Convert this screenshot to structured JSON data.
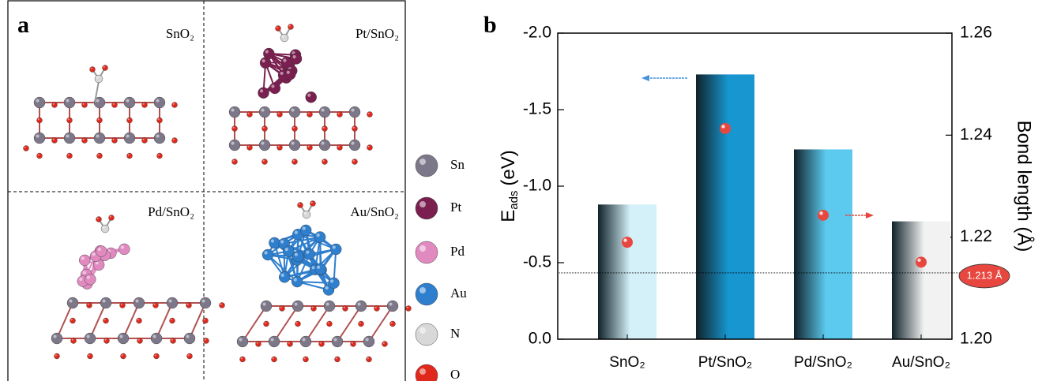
{
  "panel_a": {
    "letter": "a",
    "structures": [
      "SnO₂",
      "Pt/SnO₂",
      "Pd/SnO₂",
      "Au/SnO₂"
    ],
    "legend": [
      "Sn",
      "Pt",
      "Pd",
      "Au",
      "N",
      "O"
    ]
  },
  "chart_data": {
    "type": "bar",
    "letter": "b",
    "categories": [
      "SnO₂",
      "Pt/SnO₂",
      "Pd/SnO₂",
      "Au/SnO₂"
    ],
    "y_label": "E",
    "y_label_sub": "ads",
    "y_label_unit": "(eV)",
    "y2_label": "Bond length (Å)",
    "ylim": [
      0,
      -2.0
    ],
    "yticks": [
      {
        "value": 0,
        "label": "0.0"
      },
      -0.5,
      {
        "value": -1,
        "label": "-1.0"
      },
      -1.5,
      {
        "value": -2,
        "label": "-2.0"
      }
    ],
    "y2lim": [
      1.2,
      1.26
    ],
    "y2ticks": [
      {
        "value": 1.2,
        "label": "1.20"
      },
      1.22,
      1.24,
      1.26
    ],
    "series": [
      {
        "values": [
          -0.88,
          -1.73,
          -1.24,
          -0.77
        ],
        "colors": [
          "#d4f0f8",
          "#1796cf",
          "#5ccaee",
          "#f2f2f2"
        ]
      },
      {
        "type": "scatter",
        "axis": "y2",
        "values": [
          1.219,
          1.2413,
          1.2243,
          1.2151
        ],
        "color": "#e8473f"
      }
    ],
    "reference_line": {
      "axis": "y2",
      "value": 1.213,
      "label": "1.213 Å",
      "color": "#e8473f"
    }
  }
}
